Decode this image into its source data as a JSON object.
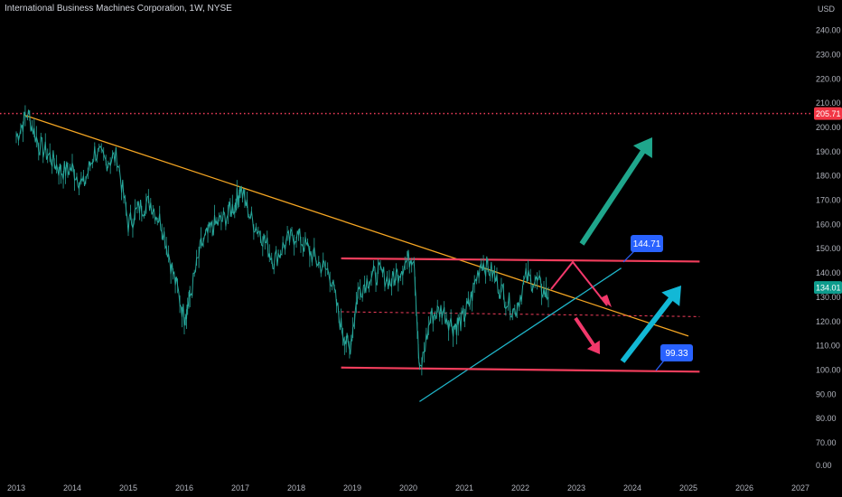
{
  "header": {
    "title": "International Business Machines Corporation, 1W, NYSE",
    "currency": "USD"
  },
  "colors": {
    "background": "#000000",
    "price": "#26a69a",
    "trendline_down": "#f5a623",
    "trendline_up": "#1fb5c9",
    "channel": "#f23e5c",
    "resistance_dotted": "#f23e5c",
    "arrow_up_green": "#1fa68c",
    "arrow_up_cyan": "#12b8d6",
    "arrow_pink": "#f2386b",
    "label_blue": "#2962ff",
    "current_price_bg": "#0e9c8d"
  },
  "chart_data": {
    "type": "line",
    "title": "International Business Machines Corporation, 1W, NYSE",
    "ylabel": "USD",
    "ylim": [
      0,
      245
    ],
    "y_axis_ticks": [
      "0.00",
      "70.00",
      "80.00",
      "90.00",
      "100.00",
      "110.00",
      "120.00",
      "130.00",
      "140.00",
      "150.00",
      "160.00",
      "170.00",
      "180.00",
      "190.00",
      "200.00",
      "210.00",
      "220.00",
      "230.00",
      "240.00"
    ],
    "x_axis_ticks": [
      "2013",
      "2014",
      "2015",
      "2016",
      "2017",
      "2018",
      "2019",
      "2020",
      "2021",
      "2022",
      "2023",
      "2024",
      "2025",
      "2026",
      "2027"
    ],
    "grid": false,
    "series": [
      {
        "name": "",
        "x": [
          2013.0,
          2013.2,
          2013.4,
          2013.6,
          2013.8,
          2014.0,
          2014.2,
          2014.4,
          2014.6,
          2014.8,
          2015.0,
          2015.2,
          2015.4,
          2015.6,
          2015.8,
          2016.0,
          2016.1,
          2016.3,
          2016.5,
          2016.7,
          2016.9,
          2017.0,
          2017.2,
          2017.4,
          2017.6,
          2017.8,
          2018.0,
          2018.2,
          2018.4,
          2018.6,
          2018.8,
          2018.95,
          2019.1,
          2019.3,
          2019.5,
          2019.7,
          2019.9,
          2020.1,
          2020.2,
          2020.4,
          2020.6,
          2020.8,
          2020.95,
          2021.1,
          2021.3,
          2021.5,
          2021.7,
          2021.9,
          2022.1,
          2022.3,
          2022.5
        ],
        "values": [
          196,
          206,
          193,
          188,
          182,
          183,
          176,
          190,
          186,
          188,
          160,
          167,
          169,
          160,
          140,
          122,
          130,
          151,
          159,
          162,
          168,
          175,
          162,
          155,
          145,
          152,
          156,
          150,
          144,
          140,
          118,
          108,
          132,
          138,
          140,
          136,
          143,
          148,
          98,
          122,
          125,
          118,
          120,
          128,
          145,
          140,
          131,
          124,
          138,
          136,
          130
        ]
      }
    ],
    "current_price": "134.01",
    "annotations": {
      "resistance_dotted_level": "205.71",
      "channel_top_label": "144.71",
      "channel_bottom_label": "99.33",
      "mid_dashed_level": 122
    },
    "drawings": [
      {
        "kind": "trendline",
        "color": "orange",
        "from": [
          2013.15,
          205
        ],
        "to": [
          2025.0,
          114
        ]
      },
      {
        "kind": "trendline",
        "color": "cyan",
        "from": [
          2020.2,
          87
        ],
        "to": [
          2023.8,
          142
        ]
      },
      {
        "kind": "channel_top",
        "from": [
          2018.8,
          146
        ],
        "to": [
          2025.2,
          144.7
        ]
      },
      {
        "kind": "channel_bottom",
        "from": [
          2018.8,
          101
        ],
        "to": [
          2025.2,
          99.3
        ]
      }
    ]
  }
}
